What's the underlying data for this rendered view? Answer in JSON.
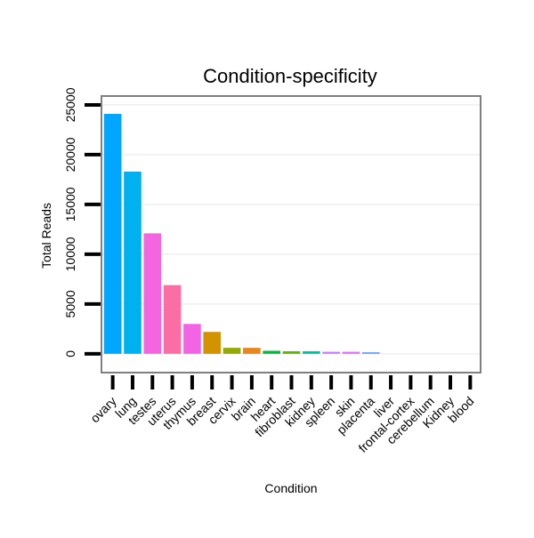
{
  "chart_data": {
    "type": "bar",
    "title": "Condition-specificity",
    "xlabel": "Condition",
    "ylabel": "Total Reads",
    "ylim": [
      -1800,
      25800
    ],
    "yticks": [
      0,
      5000,
      10000,
      15000,
      20000,
      25000
    ],
    "ytick_labels": [
      "0",
      "5000",
      "10000",
      "15000",
      "20000",
      "25000"
    ],
    "grid": true,
    "categories": [
      "ovary",
      "lung",
      "testes",
      "uterus",
      "thymus",
      "breast",
      "cervix",
      "brain",
      "heart",
      "fibroblast",
      "kidney",
      "spleen",
      "skin",
      "placenta",
      "liver",
      "frontal-cortex",
      "cerebellum",
      "Kidney",
      "blood"
    ],
    "values": [
      24100,
      18300,
      12100,
      6900,
      3000,
      2200,
      600,
      600,
      300,
      250,
      250,
      200,
      200,
      150,
      0,
      0,
      0,
      0,
      0
    ],
    "colors": [
      "#00a6ff",
      "#00b1ef",
      "#f466e0",
      "#fb6ea5",
      "#f364e5",
      "#d39200",
      "#93aa00",
      "#e7861b",
      "#00ba38",
      "#5eb300",
      "#00bfa0",
      "#c77cff",
      "#db72fb",
      "#619cff",
      "#00c0b8",
      "#00b9e3",
      "#00a9ff",
      "#8494ff",
      "#ff61c3"
    ]
  }
}
